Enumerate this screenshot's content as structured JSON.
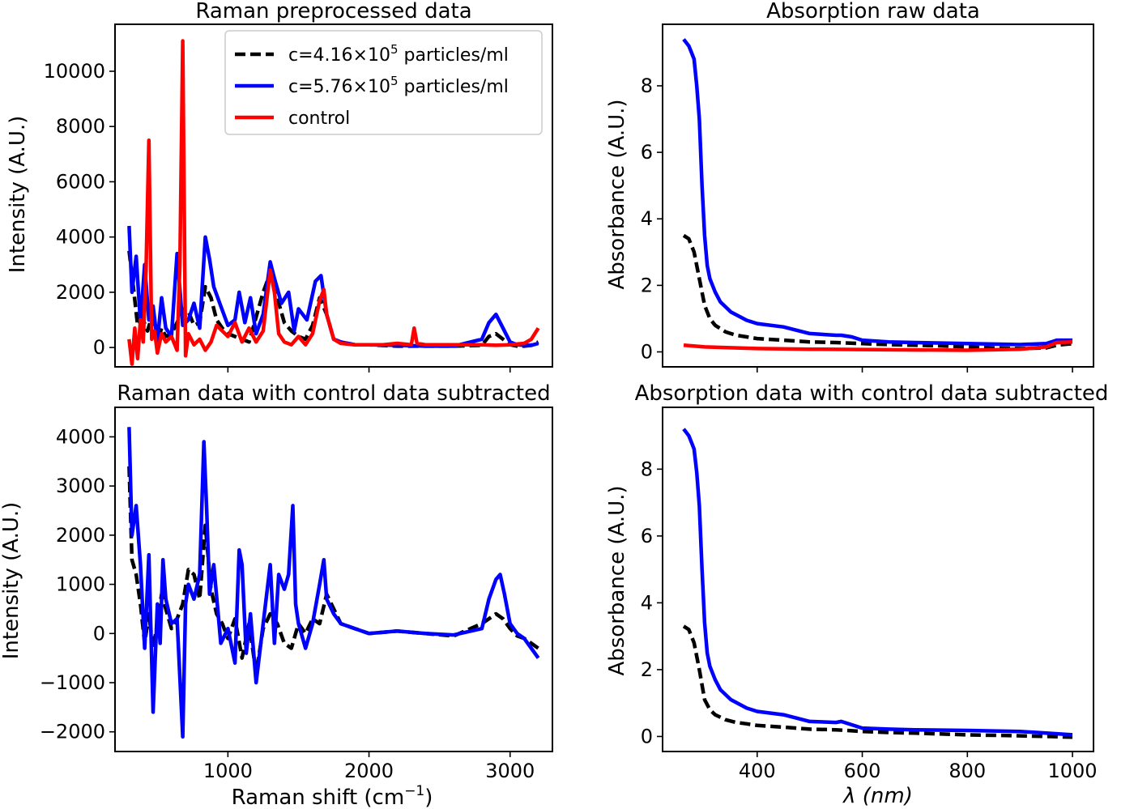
{
  "chart_data": [
    {
      "id": "raman_raw",
      "type": "line",
      "title": "Raman preprocessed data",
      "xlabel": "",
      "ylabel": "Intensity (A.U.)",
      "xlim": [
        200,
        3300
      ],
      "ylim": [
        -700,
        11700
      ],
      "xticks": [
        1000,
        2000,
        3000
      ],
      "xticklabels": [
        "",
        "",
        ""
      ],
      "yticks": [
        0,
        2000,
        4000,
        6000,
        8000,
        10000
      ],
      "yticklabels": [
        "0",
        "2000",
        "4000",
        "6000",
        "8000",
        "10000"
      ],
      "legend": {
        "position": "top-right",
        "entries": [
          {
            "base": "c=4.16×10",
            "sup": "5",
            "tail": " particles/ml",
            "color": "#000000",
            "dash": true
          },
          {
            "base": "c=5.76×10",
            "sup": "5",
            "tail": " particles/ml",
            "color": "#0000ff",
            "dash": false
          },
          {
            "base": "control",
            "sup": "",
            "tail": "",
            "color": "#ff0000",
            "dash": false
          }
        ]
      },
      "series": [
        {
          "color": "#000000",
          "dash": true,
          "x": [
            300,
            330,
            360,
            400,
            430,
            460,
            500,
            530,
            560,
            600,
            640,
            680,
            720,
            760,
            800,
            840,
            880,
            920,
            960,
            1000,
            1050,
            1100,
            1150,
            1200,
            1250,
            1300,
            1350,
            1400,
            1450,
            1500,
            1550,
            1600,
            1650,
            1700,
            1750,
            1800,
            1900,
            2000,
            2200,
            2400,
            2600,
            2800,
            2850,
            2900,
            2950,
            3000,
            3050,
            3100,
            3150,
            3200
          ],
          "y": [
            3500,
            2200,
            800,
            1000,
            600,
            1100,
            200,
            700,
            400,
            500,
            900,
            1400,
            1300,
            800,
            900,
            2200,
            1800,
            1000,
            700,
            500,
            400,
            300,
            200,
            1100,
            2000,
            2700,
            1800,
            900,
            600,
            400,
            300,
            800,
            1800,
            1200,
            300,
            200,
            100,
            100,
            50,
            50,
            50,
            80,
            400,
            500,
            300,
            100,
            50,
            50,
            80,
            200
          ]
        },
        {
          "color": "#0000ff",
          "dash": false,
          "x": [
            300,
            320,
            350,
            380,
            410,
            440,
            470,
            500,
            530,
            560,
            600,
            640,
            680,
            720,
            760,
            800,
            840,
            870,
            900,
            950,
            1000,
            1050,
            1080,
            1120,
            1160,
            1200,
            1250,
            1300,
            1330,
            1380,
            1430,
            1470,
            1500,
            1560,
            1620,
            1660,
            1700,
            1750,
            1800,
            1900,
            2000,
            2200,
            2400,
            2600,
            2800,
            2850,
            2900,
            2950,
            3000,
            3050,
            3100,
            3150,
            3200
          ],
          "y": [
            4400,
            2000,
            3300,
            900,
            3000,
            1000,
            1500,
            200,
            1800,
            700,
            400,
            3400,
            800,
            1000,
            1600,
            700,
            4000,
            3200,
            2200,
            1500,
            800,
            1000,
            2000,
            900,
            1800,
            500,
            1200,
            3100,
            2500,
            1600,
            2000,
            600,
            1400,
            1000,
            2400,
            2600,
            1200,
            300,
            200,
            100,
            100,
            80,
            50,
            50,
            300,
            900,
            1200,
            700,
            200,
            100,
            80,
            80,
            150
          ]
        },
        {
          "color": "#ff0000",
          "dash": false,
          "x": [
            300,
            320,
            340,
            360,
            380,
            400,
            420,
            440,
            460,
            480,
            500,
            530,
            560,
            600,
            640,
            660,
            680,
            700,
            720,
            760,
            800,
            840,
            880,
            920,
            960,
            1000,
            1050,
            1100,
            1150,
            1200,
            1250,
            1300,
            1330,
            1360,
            1400,
            1450,
            1500,
            1550,
            1600,
            1650,
            1680,
            1700,
            1750,
            1800,
            1900,
            2000,
            2100,
            2200,
            2300,
            2320,
            2340,
            2400,
            2600,
            2800,
            2900,
            3000,
            3100,
            3150,
            3200
          ],
          "y": [
            300,
            -600,
            700,
            -400,
            1000,
            200,
            2800,
            7500,
            300,
            600,
            -200,
            500,
            200,
            400,
            -100,
            3000,
            11100,
            -300,
            500,
            100,
            300,
            -100,
            200,
            800,
            600,
            400,
            900,
            200,
            700,
            200,
            600,
            2800,
            2000,
            500,
            200,
            100,
            400,
            100,
            500,
            1700,
            2100,
            1200,
            300,
            150,
            100,
            100,
            100,
            150,
            100,
            700,
            150,
            100,
            100,
            100,
            80,
            100,
            150,
            300,
            700
          ]
        }
      ]
    },
    {
      "id": "absorption_raw",
      "type": "line",
      "title": "Absorption raw data",
      "xlabel": "",
      "ylabel": "Absorbance (A.U.)",
      "xlim": [
        220,
        1040
      ],
      "ylim": [
        -0.45,
        9.85
      ],
      "xticks": [
        400,
        600,
        800,
        1000
      ],
      "xticklabels": [
        "",
        "",
        "",
        ""
      ],
      "yticks": [
        0,
        2,
        4,
        6,
        8
      ],
      "yticklabels": [
        "0",
        "2",
        "4",
        "6",
        "8"
      ],
      "series": [
        {
          "color": "#000000",
          "dash": true,
          "x": [
            260,
            270,
            280,
            290,
            300,
            310,
            320,
            340,
            360,
            380,
            400,
            450,
            500,
            550,
            600,
            650,
            700,
            750,
            800,
            850,
            900,
            950,
            970,
            1000
          ],
          "y": [
            3.5,
            3.4,
            3.0,
            2.2,
            1.4,
            1.0,
            0.8,
            0.6,
            0.5,
            0.45,
            0.4,
            0.35,
            0.3,
            0.28,
            0.25,
            0.22,
            0.2,
            0.18,
            0.15,
            0.12,
            0.1,
            0.12,
            0.2,
            0.25
          ]
        },
        {
          "color": "#0000ff",
          "dash": false,
          "x": [
            260,
            265,
            270,
            275,
            280,
            285,
            290,
            295,
            300,
            305,
            310,
            320,
            330,
            350,
            380,
            400,
            450,
            500,
            550,
            560,
            580,
            600,
            650,
            700,
            800,
            900,
            950,
            970,
            1000
          ],
          "y": [
            9.4,
            9.3,
            9.2,
            9.0,
            8.8,
            8.0,
            7.0,
            5.0,
            3.5,
            2.6,
            2.2,
            1.8,
            1.5,
            1.2,
            0.95,
            0.85,
            0.75,
            0.55,
            0.5,
            0.5,
            0.45,
            0.35,
            0.3,
            0.28,
            0.25,
            0.22,
            0.25,
            0.35,
            0.35
          ]
        },
        {
          "color": "#ff0000",
          "dash": false,
          "x": [
            260,
            300,
            400,
            500,
            600,
            700,
            800,
            900,
            950,
            970,
            1000
          ],
          "y": [
            0.2,
            0.15,
            0.1,
            0.08,
            0.07,
            0.06,
            0.05,
            0.08,
            0.15,
            0.28,
            0.3
          ]
        }
      ]
    },
    {
      "id": "raman_subtracted",
      "type": "line",
      "title": "Raman data with control data subtracted",
      "xlabel": "Raman shift (cm",
      "xlabel_sup": "−1",
      "xlabel_tail": ")",
      "ylabel": "Intensity (A.U.)",
      "xlim": [
        200,
        3300
      ],
      "ylim": [
        -2400,
        4600
      ],
      "xticks": [
        1000,
        2000,
        3000
      ],
      "xticklabels": [
        "1000",
        "2000",
        "3000"
      ],
      "yticks": [
        -2000,
        -1000,
        0,
        1000,
        2000,
        3000,
        4000
      ],
      "yticklabels": [
        "−2000",
        "−1000",
        "0",
        "1000",
        "2000",
        "3000",
        "4000"
      ],
      "series": [
        {
          "color": "#000000",
          "dash": true,
          "x": [
            300,
            320,
            350,
            380,
            410,
            440,
            470,
            500,
            530,
            560,
            600,
            640,
            680,
            720,
            760,
            800,
            840,
            880,
            920,
            960,
            1000,
            1050,
            1100,
            1150,
            1200,
            1250,
            1300,
            1350,
            1400,
            1450,
            1500,
            1550,
            1600,
            1650,
            1700,
            1750,
            1800,
            1900,
            2000,
            2200,
            2400,
            2600,
            2800,
            2850,
            2900,
            2950,
            3000,
            3050,
            3100,
            3150,
            3200
          ],
          "y": [
            3400,
            1500,
            1200,
            600,
            -200,
            400,
            -300,
            200,
            800,
            500,
            100,
            300,
            600,
            1300,
            1200,
            700,
            2200,
            900,
            400,
            200,
            -100,
            300,
            -500,
            200,
            -800,
            100,
            400,
            200,
            -200,
            -300,
            200,
            0,
            300,
            200,
            800,
            500,
            200,
            100,
            0,
            50,
            0,
            -50,
            200,
            300,
            400,
            300,
            100,
            -50,
            -100,
            -200,
            -300
          ]
        },
        {
          "color": "#0000ff",
          "dash": false,
          "x": [
            300,
            320,
            350,
            380,
            410,
            440,
            470,
            500,
            520,
            540,
            560,
            600,
            640,
            680,
            700,
            720,
            760,
            800,
            830,
            850,
            870,
            900,
            950,
            1000,
            1050,
            1080,
            1100,
            1130,
            1160,
            1200,
            1250,
            1300,
            1330,
            1360,
            1400,
            1430,
            1460,
            1480,
            1500,
            1550,
            1600,
            1650,
            1680,
            1700,
            1750,
            1800,
            1900,
            2000,
            2200,
            2400,
            2600,
            2800,
            2850,
            2900,
            2930,
            2960,
            3000,
            3050,
            3100,
            3150,
            3200
          ],
          "y": [
            4200,
            2000,
            2600,
            1400,
            -300,
            1600,
            -1600,
            600,
            -200,
            1500,
            700,
            200,
            300,
            -2100,
            600,
            1000,
            700,
            1200,
            3900,
            2500,
            800,
            1400,
            -200,
            100,
            -600,
            1700,
            1400,
            -400,
            400,
            -1000,
            200,
            1400,
            -200,
            1200,
            900,
            1200,
            2600,
            600,
            200,
            -300,
            200,
            1000,
            1500,
            700,
            400,
            200,
            100,
            0,
            50,
            0,
            -30,
            100,
            700,
            1100,
            1200,
            800,
            200,
            0,
            -100,
            -300,
            -500
          ]
        }
      ]
    },
    {
      "id": "absorption_subtracted",
      "type": "line",
      "title": "Absorption data with control data subtracted",
      "xlabel": "λ (nm)",
      "ylabel": "Absorbance (A.U.)",
      "xlim": [
        220,
        1040
      ],
      "ylim": [
        -0.45,
        9.85
      ],
      "xticks": [
        400,
        600,
        800,
        1000
      ],
      "xticklabels": [
        "400",
        "600",
        "800",
        "1000"
      ],
      "yticks": [
        0,
        2,
        4,
        6,
        8
      ],
      "yticklabels": [
        "0",
        "2",
        "4",
        "6",
        "8"
      ],
      "series": [
        {
          "color": "#000000",
          "dash": true,
          "x": [
            260,
            270,
            280,
            290,
            300,
            310,
            320,
            340,
            360,
            380,
            400,
            450,
            500,
            550,
            600,
            650,
            700,
            800,
            900,
            950,
            1000
          ],
          "y": [
            3.3,
            3.2,
            2.8,
            2.0,
            1.1,
            0.8,
            0.65,
            0.5,
            0.42,
            0.38,
            0.33,
            0.28,
            0.22,
            0.2,
            0.15,
            0.12,
            0.1,
            0.05,
            0.02,
            0.0,
            -0.02
          ]
        },
        {
          "color": "#0000ff",
          "dash": false,
          "x": [
            260,
            265,
            270,
            275,
            280,
            285,
            290,
            295,
            300,
            305,
            310,
            320,
            330,
            350,
            380,
            400,
            450,
            500,
            550,
            560,
            580,
            600,
            650,
            700,
            800,
            900,
            950,
            1000
          ],
          "y": [
            9.2,
            9.1,
            9.0,
            8.8,
            8.6,
            7.9,
            6.9,
            5.0,
            3.4,
            2.5,
            2.1,
            1.7,
            1.4,
            1.1,
            0.85,
            0.75,
            0.65,
            0.45,
            0.42,
            0.45,
            0.35,
            0.25,
            0.22,
            0.2,
            0.18,
            0.15,
            0.1,
            0.05
          ]
        }
      ]
    }
  ]
}
